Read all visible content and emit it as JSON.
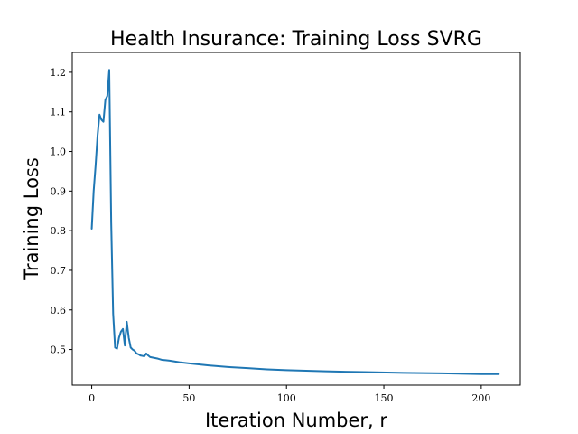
{
  "chart_data": {
    "type": "line",
    "title": "Health Insurance: Training Loss SVRG",
    "xlabel": "Iteration Number, r",
    "ylabel": "Training Loss",
    "xlim": [
      -10,
      220
    ],
    "ylim": [
      0.41,
      1.25
    ],
    "xticks": [
      0,
      50,
      100,
      150,
      200
    ],
    "yticks": [
      0.5,
      0.6,
      0.7,
      0.8,
      0.9,
      1.0,
      1.1,
      1.2
    ],
    "xtick_labels": [
      "0",
      "50",
      "100",
      "150",
      "200"
    ],
    "ytick_labels": [
      "0.5",
      "0.6",
      "0.7",
      "0.8",
      "0.9",
      "1.0",
      "1.1",
      "1.2"
    ],
    "grid": false,
    "series": [
      {
        "color": "#1f77b4",
        "x": [
          0,
          1,
          2,
          3,
          4,
          5,
          6,
          7,
          8,
          9,
          10,
          11,
          12,
          13,
          14,
          15,
          16,
          17,
          18,
          19,
          20,
          21,
          22,
          23,
          24,
          25,
          26,
          27,
          28,
          29,
          30,
          32,
          34,
          36,
          38,
          40,
          45,
          50,
          60,
          70,
          80,
          90,
          100,
          120,
          140,
          160,
          180,
          200,
          209
        ],
        "y": [
          0.805,
          0.9,
          0.965,
          1.04,
          1.093,
          1.08,
          1.075,
          1.13,
          1.14,
          1.206,
          0.82,
          0.59,
          0.505,
          0.502,
          0.53,
          0.545,
          0.552,
          0.51,
          0.57,
          0.53,
          0.505,
          0.5,
          0.497,
          0.49,
          0.488,
          0.485,
          0.484,
          0.483,
          0.49,
          0.485,
          0.481,
          0.479,
          0.477,
          0.474,
          0.473,
          0.472,
          0.468,
          0.465,
          0.46,
          0.456,
          0.453,
          0.45,
          0.448,
          0.445,
          0.443,
          0.441,
          0.44,
          0.438,
          0.438
        ]
      }
    ]
  }
}
